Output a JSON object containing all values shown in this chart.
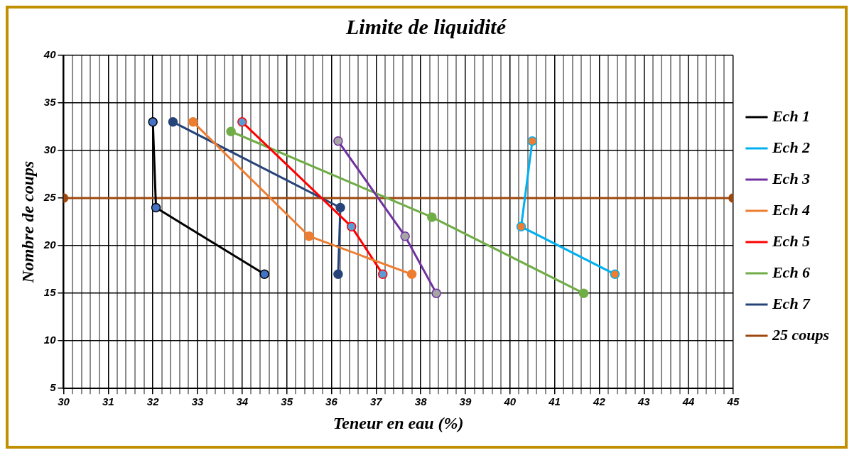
{
  "chart_data": {
    "type": "line",
    "title": "Limite de liquidité",
    "xlabel": "Teneur en eau (%)",
    "ylabel": "Nombre de coups",
    "xlim": [
      30,
      45
    ],
    "ylim": [
      5,
      40
    ],
    "yticks": [
      5,
      10,
      15,
      20,
      25,
      30,
      35,
      40
    ],
    "xticks": [
      30,
      {
        "value": 30.2,
        "label": null
      },
      {
        "value": 30.4,
        "label": null
      },
      {
        "value": 30.6,
        "label": null
      },
      {
        "value": 30.8,
        "label": null
      },
      31,
      {
        "value": 31.2,
        "label": null
      },
      {
        "value": 31.4,
        "label": null
      },
      {
        "value": 31.6,
        "label": null
      },
      {
        "value": 31.8,
        "label": null
      },
      32,
      {
        "value": 32.2,
        "label": null
      },
      {
        "value": 32.4,
        "label": null
      },
      {
        "value": 32.6,
        "label": null
      },
      {
        "value": 32.8,
        "label": null
      },
      33,
      {
        "value": 33.2,
        "label": null
      },
      {
        "value": 33.4,
        "label": null
      },
      {
        "value": 33.6,
        "label": null
      },
      {
        "value": 33.8,
        "label": null
      },
      34,
      {
        "value": 34.2,
        "label": null
      },
      {
        "value": 34.4,
        "label": null
      },
      {
        "value": 34.6,
        "label": null
      },
      {
        "value": 34.8,
        "label": null
      },
      35,
      {
        "value": 35.2,
        "label": null
      },
      {
        "value": 35.4,
        "label": null
      },
      {
        "value": 35.6,
        "label": null
      },
      {
        "value": 35.8,
        "label": null
      },
      36,
      {
        "value": 36.2,
        "label": null
      },
      {
        "value": 36.4,
        "label": null
      },
      {
        "value": 36.6,
        "label": null
      },
      {
        "value": 36.8,
        "label": null
      },
      37,
      {
        "value": 37.2,
        "label": null
      },
      {
        "value": 37.4,
        "label": null
      },
      {
        "value": 37.6,
        "label": null
      },
      {
        "value": 37.8,
        "label": null
      },
      38,
      {
        "value": 38.2,
        "label": null
      },
      {
        "value": 38.4,
        "label": null
      },
      {
        "value": 38.6,
        "label": null
      },
      {
        "value": 38.8,
        "label": null
      },
      39,
      {
        "value": 39.2,
        "label": null
      },
      {
        "value": 39.4,
        "label": null
      },
      {
        "value": 39.6,
        "label": null
      },
      {
        "value": 39.8,
        "label": null
      },
      40,
      {
        "value": 40.2,
        "label": null
      },
      {
        "value": 40.4,
        "label": null
      },
      {
        "value": 40.6,
        "label": null
      },
      {
        "value": 40.8,
        "label": null
      },
      41,
      {
        "value": 41.2,
        "label": null
      },
      {
        "value": 41.4,
        "label": null
      },
      {
        "value": 41.6,
        "label": null
      },
      {
        "value": 41.8,
        "label": null
      },
      42,
      {
        "value": 42.2,
        "label": null
      },
      {
        "value": 42.4,
        "label": null
      },
      {
        "value": 42.6,
        "label": null
      },
      {
        "value": 42.8,
        "label": null
      },
      43,
      {
        "value": 43.2,
        "label": null
      },
      {
        "value": 43.4,
        "label": null
      },
      {
        "value": 43.6,
        "label": null
      },
      {
        "value": 43.8,
        "label": null
      },
      44,
      {
        "value": 44.2,
        "label": null
      },
      {
        "value": 44.4,
        "label": null
      },
      {
        "value": 44.6,
        "label": null
      },
      {
        "value": 44.8,
        "label": null
      },
      45
    ],
    "grid": true,
    "legend": "right",
    "marker": "circle",
    "line_style": "solid",
    "series": [
      {
        "name": "Ech 1",
        "color": "#000000",
        "colors": [
          "#4472c4",
          "#4472c4",
          "#4472c4"
        ],
        "x": [
          32.0,
          32.07,
          34.5
        ],
        "values": [
          33,
          24,
          17
        ]
      },
      {
        "name": "Ech 2",
        "color": "#00b0f0",
        "colors": [
          "#ed7d31",
          "#ed7d31",
          "#ed7d31"
        ],
        "x": [
          40.5,
          40.25,
          42.35
        ],
        "values": [
          31,
          22,
          17
        ]
      },
      {
        "name": "Ech 3",
        "color": "#7030a0",
        "colors": [
          "#a5a5a5",
          "#a5a5a5",
          "#a5a5a5"
        ],
        "x": [
          36.15,
          37.65,
          38.35
        ],
        "values": [
          31,
          21,
          15
        ]
      },
      {
        "name": "Ech 4",
        "color": "#ed7d31",
        "colors": [
          "#ed7d31",
          "#ed7d31",
          "#ed7d31"
        ],
        "x": [
          32.9,
          35.5,
          37.8
        ],
        "values": [
          33,
          21,
          17
        ]
      },
      {
        "name": "Ech 5",
        "color": "#ff0000",
        "colors": [
          "#5b9bd5",
          "#5b9bd5",
          "#5b9bd5"
        ],
        "x": [
          34.0,
          36.45,
          37.15
        ],
        "values": [
          33,
          22,
          17
        ]
      },
      {
        "name": "Ech 6",
        "color": "#70ad47",
        "colors": [
          "#70ad47",
          "#70ad47",
          "#70ad47"
        ],
        "x": [
          33.75,
          38.25,
          41.65
        ],
        "values": [
          32,
          23,
          15
        ]
      },
      {
        "name": "Ech 7",
        "color": "#264478",
        "colors": [
          "#264478",
          "#264478",
          "#264478"
        ],
        "x": [
          32.45,
          36.2,
          36.15
        ],
        "values": [
          33,
          24,
          17
        ]
      },
      {
        "name": "25 coups",
        "color": "#9e480e",
        "colors": [
          "#9e480e",
          "#9e480e"
        ],
        "x": [
          30,
          45
        ],
        "values": [
          25,
          25
        ]
      }
    ]
  }
}
